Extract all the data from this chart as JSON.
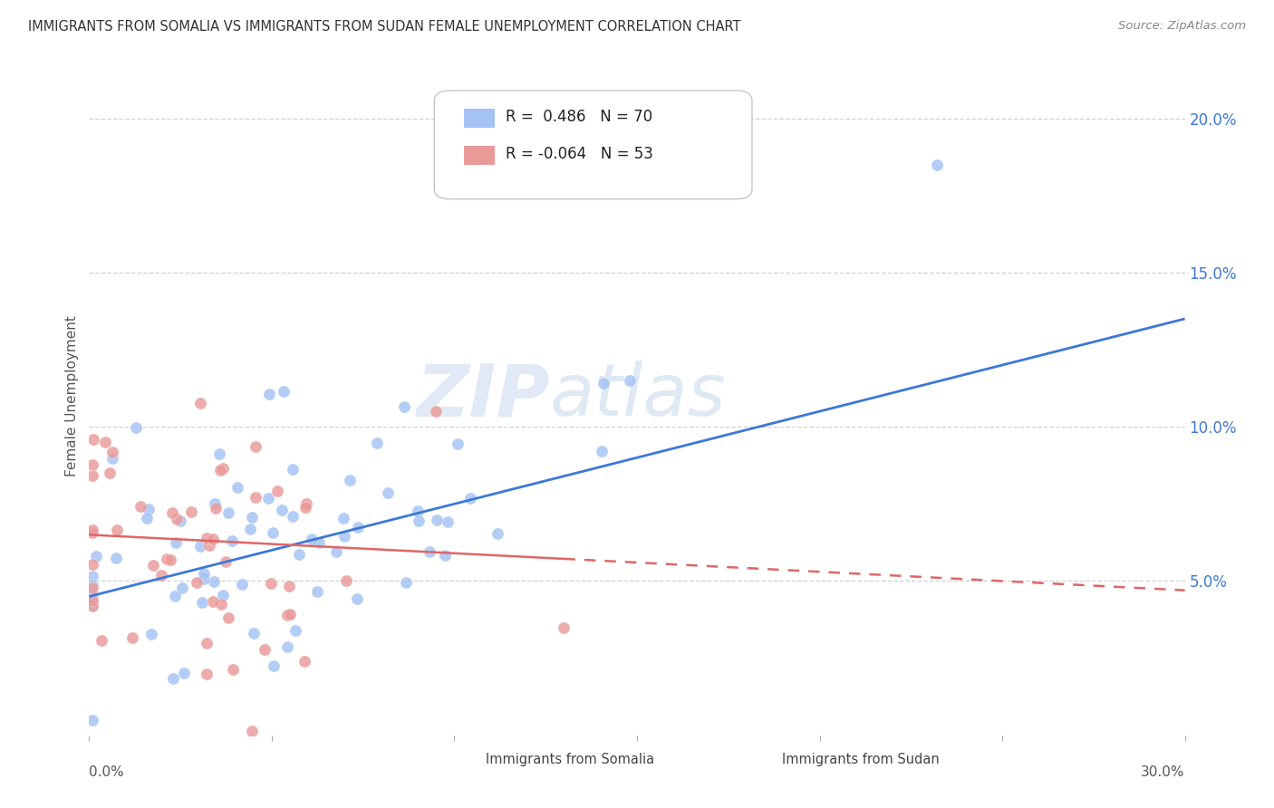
{
  "title": "IMMIGRANTS FROM SOMALIA VS IMMIGRANTS FROM SUDAN FEMALE UNEMPLOYMENT CORRELATION CHART",
  "source": "Source: ZipAtlas.com",
  "ylabel": "Female Unemployment",
  "right_yticks": [
    0.05,
    0.1,
    0.15,
    0.2
  ],
  "right_yticklabels": [
    "5.0%",
    "10.0%",
    "15.0%",
    "20.0%"
  ],
  "xlim": [
    0.0,
    0.3
  ],
  "ylim": [
    0.0,
    0.22
  ],
  "somalia_color": "#a4c2f4",
  "sudan_color": "#ea9999",
  "somalia_line_color": "#3c78d8",
  "sudan_line_color": "#e06666",
  "somalia_R": 0.486,
  "somalia_N": 70,
  "sudan_R": -0.064,
  "sudan_N": 53,
  "legend_somalia": "Immigrants from Somalia",
  "legend_sudan": "Immigrants from Sudan",
  "watermark": "ZIPatlas",
  "background_color": "#ffffff",
  "grid_color": "#cccccc"
}
